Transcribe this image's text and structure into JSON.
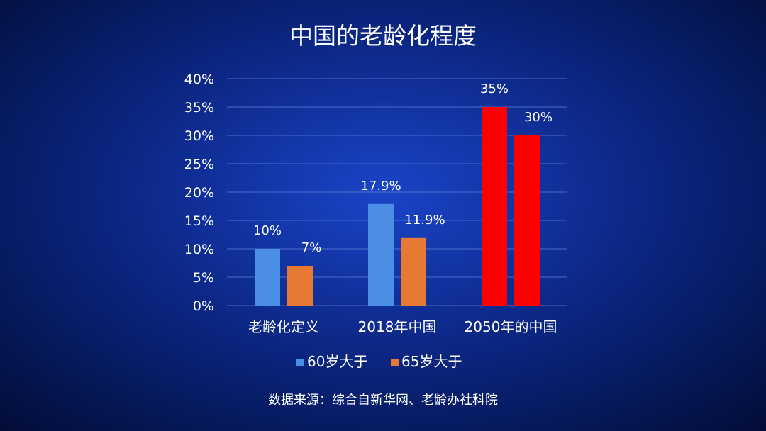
{
  "chart_data": {
    "type": "bar",
    "title": "中国的老龄化程度",
    "categories": [
      "老龄化定义",
      "2018年中国",
      "2050年的中国"
    ],
    "series": [
      {
        "name": "60岁大于",
        "values": [
          10,
          17.9,
          35
        ],
        "labels": [
          "10%",
          "17.9%",
          "35%"
        ],
        "colors": [
          "#4a8ee6",
          "#4a8ee6",
          "#ff0000"
        ]
      },
      {
        "name": "65岁大于",
        "values": [
          7,
          11.9,
          30
        ],
        "labels": [
          "7%",
          "11.9%",
          "30%"
        ],
        "colors": [
          "#e67a35",
          "#e67a35",
          "#ff0000"
        ]
      }
    ],
    "ylim": [
      0,
      40
    ],
    "yticks": [
      0,
      5,
      10,
      15,
      20,
      25,
      30,
      35,
      40
    ],
    "ytick_labels": [
      "0%",
      "5%",
      "10%",
      "15%",
      "20%",
      "25%",
      "30%",
      "35%",
      "40%"
    ],
    "xlabel": "",
    "ylabel": "",
    "grid": true,
    "legend_position": "bottom",
    "legend_colors": [
      "#4a8ee6",
      "#e67a35"
    ]
  },
  "source": "数据来源：综合自新华网、老龄办社科院"
}
